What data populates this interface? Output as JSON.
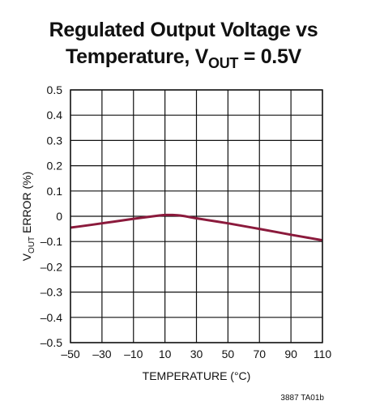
{
  "chart_data": {
    "type": "line",
    "title_line1": "Regulated Output Voltage vs",
    "title_line2_prefix": "Temperature, V",
    "title_line2_sub": "OUT",
    "title_line2_suffix": " = 0.5V",
    "xlabel": "TEMPERATURE (°C)",
    "ylabel_prefix": "V",
    "ylabel_sub": "OUT",
    "ylabel_suffix": " ERROR (%)",
    "xlim": [
      -50,
      110
    ],
    "ylim": [
      -0.5,
      0.5
    ],
    "x_ticks": [
      -50,
      -30,
      -10,
      10,
      30,
      50,
      70,
      90,
      110
    ],
    "x_tick_labels": [
      "–50",
      "–30",
      "–10",
      "10",
      "30",
      "50",
      "70",
      "90",
      "110"
    ],
    "y_ticks": [
      0.5,
      0.4,
      0.3,
      0.2,
      0.1,
      0,
      -0.1,
      -0.2,
      -0.3,
      -0.4,
      -0.5
    ],
    "y_tick_labels": [
      "0.5",
      "0.4",
      "0.3",
      "0.2",
      "0.1",
      "0",
      "–0.1",
      "–0.2",
      "–0.3",
      "–0.4",
      "–0.5"
    ],
    "grid": true,
    "series": [
      {
        "color": "#8b1a3c",
        "x": [
          -50,
          -30,
          -10,
          5,
          10,
          15,
          20,
          30,
          50,
          70,
          90,
          110
        ],
        "y": [
          -0.045,
          -0.028,
          -0.01,
          0.002,
          0.005,
          0.005,
          0.003,
          -0.008,
          -0.028,
          -0.05,
          -0.073,
          -0.095
        ]
      }
    ],
    "figure_code": "3887 TA01b"
  }
}
